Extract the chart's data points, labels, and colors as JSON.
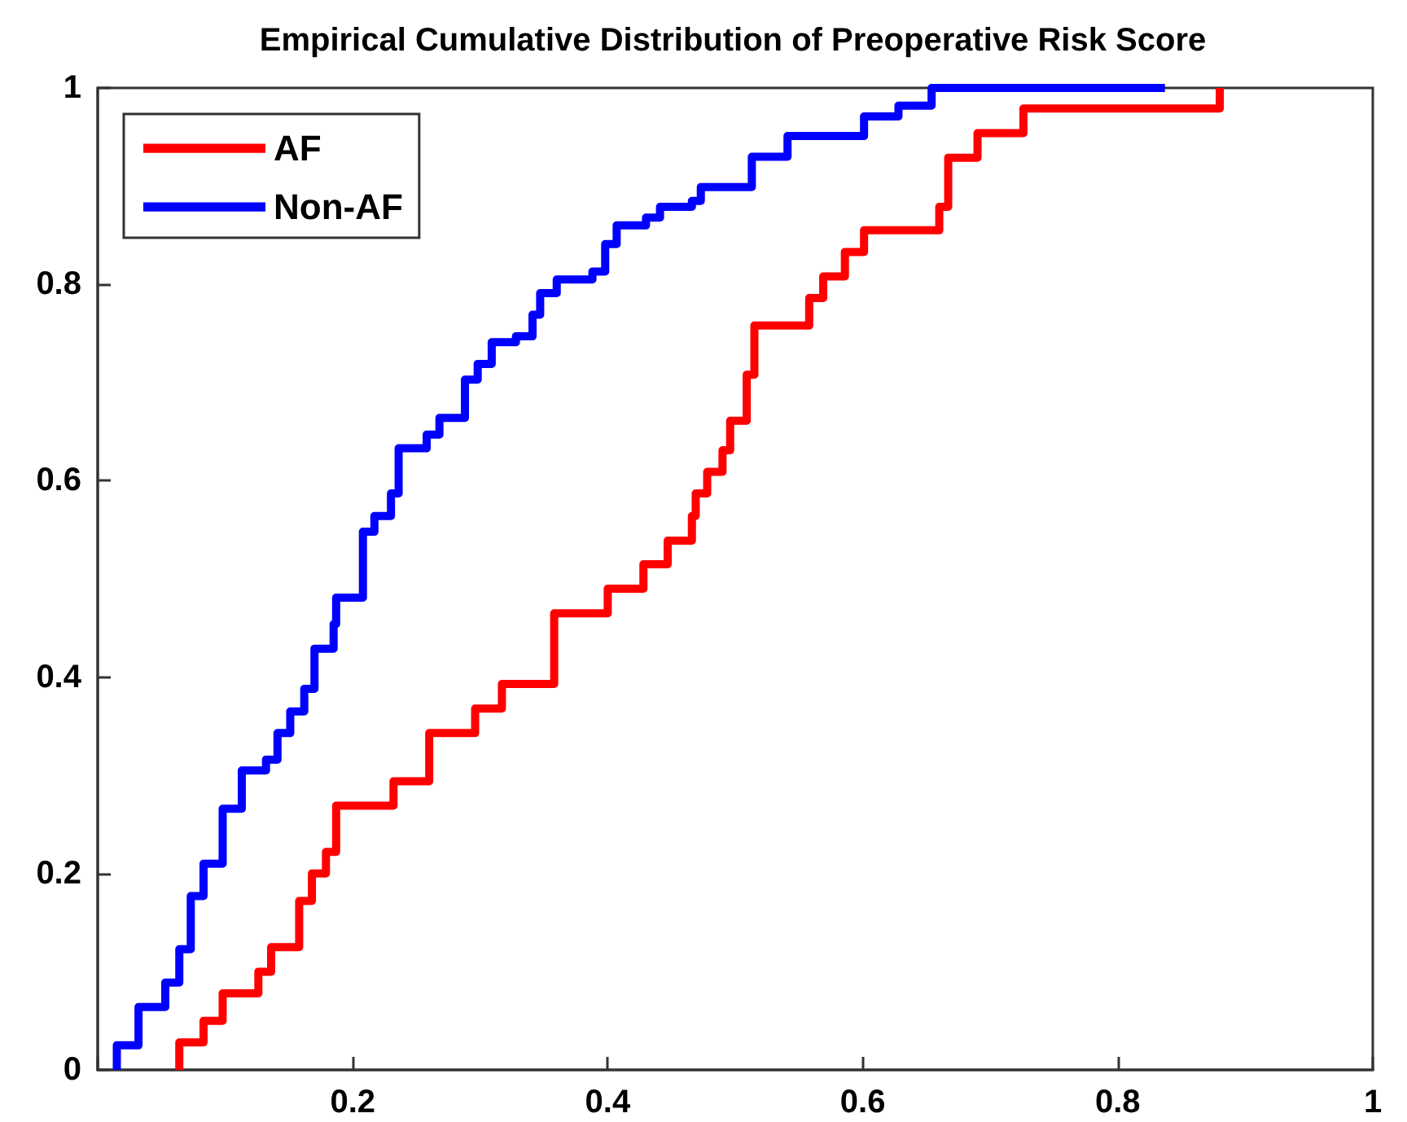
{
  "chart_data": {
    "type": "step",
    "title": "Empirical Cumulative Distribution of Preoperative Risk Score",
    "xlim": [
      0,
      1
    ],
    "xticks": [
      {
        "value": 0,
        "label": null
      },
      0.2,
      0.4,
      0.6,
      0.8,
      1
    ],
    "ylim": [
      0,
      1
    ],
    "yticks": [
      0,
      0.2,
      0.4,
      0.6,
      0.8,
      1
    ],
    "grid": false,
    "legend": "top left",
    "marker": "none",
    "line_style": "solid",
    "series": [
      {
        "name": "AF",
        "color": "#ff0000",
        "x": [
          0.064,
          0.064,
          0.083,
          0.098,
          0.126,
          0.136,
          0.158,
          0.168,
          0.179,
          0.187,
          0.232,
          0.26,
          0.296,
          0.317,
          0.358,
          0.4,
          0.428,
          0.447,
          0.466,
          0.469,
          0.478,
          0.49,
          0.496,
          0.509,
          0.515,
          0.558,
          0.569,
          0.586,
          0.601,
          0.66,
          0.667,
          0.69,
          0.726,
          0.88
        ],
        "values": [
          0,
          0.028,
          0.05,
          0.078,
          0.1,
          0.125,
          0.172,
          0.2,
          0.222,
          0.269,
          0.294,
          0.343,
          0.368,
          0.393,
          0.465,
          0.49,
          0.515,
          0.539,
          0.564,
          0.587,
          0.609,
          0.631,
          0.661,
          0.708,
          0.758,
          0.786,
          0.808,
          0.833,
          0.855,
          0.879,
          0.929,
          0.954,
          0.979,
          1
        ]
      },
      {
        "name": "Non-AF",
        "color": "#0000ff",
        "x": [
          0.015,
          0.015,
          0.032,
          0.053,
          0.064,
          0.073,
          0.083,
          0.098,
          0.113,
          0.132,
          0.141,
          0.151,
          0.162,
          0.17,
          0.185,
          0.187,
          0.208,
          0.217,
          0.23,
          0.236,
          0.258,
          0.268,
          0.288,
          0.298,
          0.309,
          0.328,
          0.341,
          0.347,
          0.36,
          0.388,
          0.398,
          0.407,
          0.43,
          0.441,
          0.466,
          0.473,
          0.513,
          0.541,
          0.601,
          0.628,
          0.654,
          0.837
        ],
        "values": [
          0,
          0.025,
          0.064,
          0.089,
          0.123,
          0.177,
          0.21,
          0.266,
          0.305,
          0.316,
          0.343,
          0.365,
          0.388,
          0.429,
          0.454,
          0.481,
          0.548,
          0.564,
          0.587,
          0.633,
          0.647,
          0.664,
          0.703,
          0.719,
          0.741,
          0.747,
          0.769,
          0.791,
          0.805,
          0.813,
          0.841,
          0.86,
          0.868,
          0.879,
          0.885,
          0.899,
          0.93,
          0.951,
          0.971,
          0.982,
          1,
          1
        ]
      }
    ]
  }
}
